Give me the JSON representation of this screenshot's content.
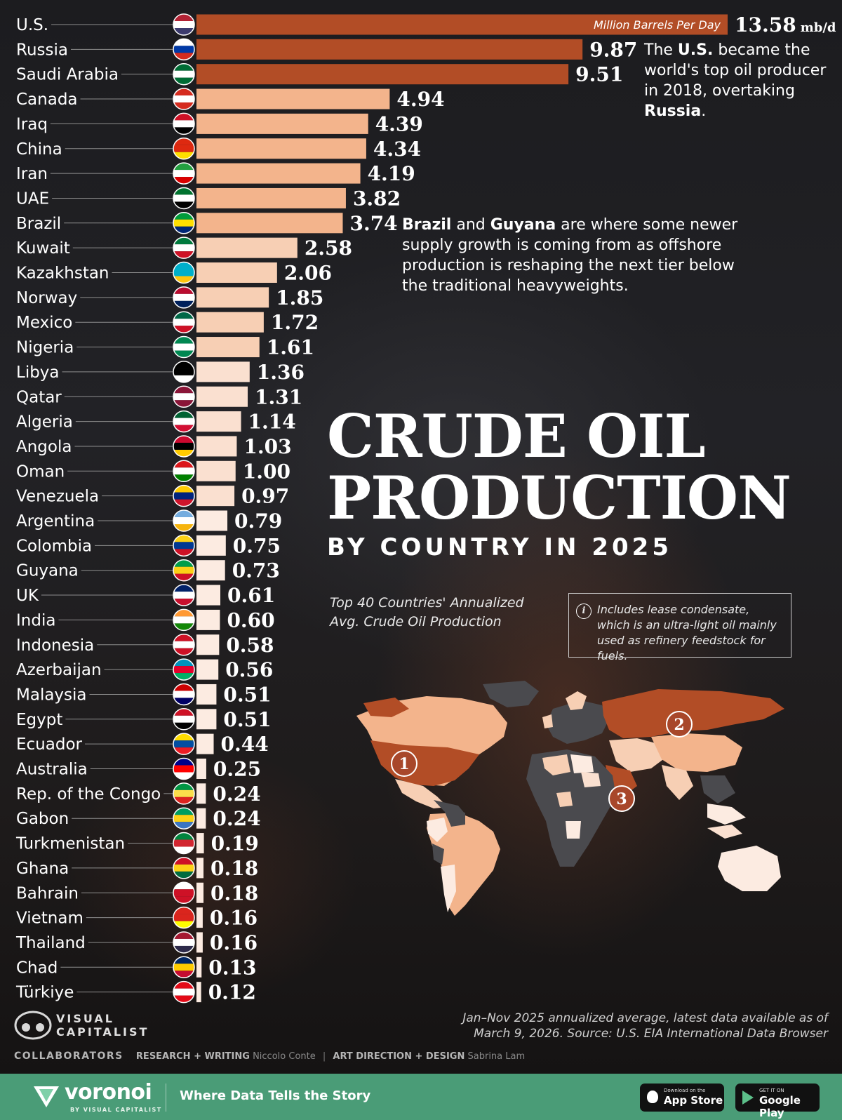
{
  "title_line1": "CRUDE OIL",
  "title_line2": "PRODUCTION",
  "subtitle": "BY COUNTRY IN 2025",
  "top40_line1": "Top 40 Countries' Annualized",
  "top40_line2": "Avg. Crude Oil Production",
  "info_icon": "i",
  "info_text": "Includes lease condensate, which is an ultra-light oil mainly used as refinery feedstock for fuels.",
  "note_us": {
    "part1": "The ",
    "bold1": "U.S.",
    "part2": " became the world's top oil producer in 2018, overtaking ",
    "bold2": "Russia",
    "part3": "."
  },
  "note_brazil": {
    "bold1": "Brazil",
    "part1": " and ",
    "bold2": "Guyana",
    "part2": " are where some newer supply growth is coming from as offshore production is reshaping the next tier below the traditional heavyweights."
  },
  "source_line1": "Jan–Nov 2025 annualized average, latest data available as of",
  "source_line2": "March 9, 2026. Source: U.S. EIA International Data Browser",
  "logo_line1": "VISUAL",
  "logo_line2": "CAPITALIST",
  "credits": {
    "header": "COLLABORATORS",
    "research_key": "RESEARCH + WRITING",
    "research_val": "Niccolo Conte",
    "art_key": "ART DIRECTION + DESIGN",
    "art_val": "Sabrina Lam"
  },
  "footer": {
    "brand": "voronoi",
    "brand_sub": "BY VISUAL CAPITALIST",
    "tagline": "Where Data Tells the Story",
    "store1_small": "Download on the",
    "store1_big": "App Store",
    "store2_small": "GET IT ON",
    "store2_big": "Google Play"
  },
  "map_markers": [
    "1",
    "2",
    "3"
  ],
  "colors": {
    "top3": "#b24d26",
    "tier2": "#f3b48c",
    "tier3": "#f7cfb4",
    "tier4": "#fae0d0",
    "tier5": "#fcebe1"
  },
  "chart_data": {
    "type": "bar",
    "orientation": "horizontal",
    "unit": "mb/d",
    "unit_caption": "Million Barrels Per Day",
    "categories": [
      "U.S.",
      "Russia",
      "Saudi Arabia",
      "Canada",
      "Iraq",
      "China",
      "Iran",
      "UAE",
      "Brazil",
      "Kuwait",
      "Kazakhstan",
      "Norway",
      "Mexico",
      "Nigeria",
      "Libya",
      "Qatar",
      "Algeria",
      "Angola",
      "Oman",
      "Venezuela",
      "Argentina",
      "Colombia",
      "Guyana",
      "UK",
      "India",
      "Indonesia",
      "Azerbaijan",
      "Malaysia",
      "Egypt",
      "Ecuador",
      "Australia",
      "Rep. of the Congo",
      "Gabon",
      "Turkmenistan",
      "Ghana",
      "Bahrain",
      "Vietnam",
      "Thailand",
      "Chad",
      "Türkiye"
    ],
    "values": [
      13.58,
      9.87,
      9.51,
      4.94,
      4.39,
      4.34,
      4.19,
      3.82,
      3.74,
      2.58,
      2.06,
      1.85,
      1.72,
      1.61,
      1.36,
      1.31,
      1.14,
      1.03,
      1.0,
      0.97,
      0.79,
      0.75,
      0.73,
      0.61,
      0.6,
      0.58,
      0.56,
      0.51,
      0.51,
      0.44,
      0.25,
      0.24,
      0.24,
      0.19,
      0.18,
      0.18,
      0.16,
      0.16,
      0.13,
      0.12
    ],
    "value_labels": [
      "13.58",
      "9.87",
      "9.51",
      "4.94",
      "4.39",
      "4.34",
      "4.19",
      "3.82",
      "3.74",
      "2.58",
      "2.06",
      "1.85",
      "1.72",
      "1.61",
      "1.36",
      "1.31",
      "1.14",
      "1.03",
      "1.00",
      "0.97",
      "0.79",
      "0.75",
      "0.73",
      "0.61",
      "0.60",
      "0.58",
      "0.56",
      "0.51",
      "0.51",
      "0.44",
      "0.25",
      "0.24",
      "0.24",
      "0.19",
      "0.18",
      "0.18",
      "0.16",
      "0.16",
      "0.13",
      "0.12"
    ],
    "flag_icons": [
      "us-flag-icon",
      "russia-flag-icon",
      "saudi-arabia-flag-icon",
      "canada-flag-icon",
      "iraq-flag-icon",
      "china-flag-icon",
      "iran-flag-icon",
      "uae-flag-icon",
      "brazil-flag-icon",
      "kuwait-flag-icon",
      "kazakhstan-flag-icon",
      "norway-flag-icon",
      "mexico-flag-icon",
      "nigeria-flag-icon",
      "libya-flag-icon",
      "qatar-flag-icon",
      "algeria-flag-icon",
      "angola-flag-icon",
      "oman-flag-icon",
      "venezuela-flag-icon",
      "argentina-flag-icon",
      "colombia-flag-icon",
      "guyana-flag-icon",
      "uk-flag-icon",
      "india-flag-icon",
      "indonesia-flag-icon",
      "azerbaijan-flag-icon",
      "malaysia-flag-icon",
      "egypt-flag-icon",
      "ecuador-flag-icon",
      "australia-flag-icon",
      "congo-flag-icon",
      "gabon-flag-icon",
      "turkmenistan-flag-icon",
      "ghana-flag-icon",
      "bahrain-flag-icon",
      "vietnam-flag-icon",
      "thailand-flag-icon",
      "chad-flag-icon",
      "turkiye-flag-icon"
    ],
    "flag_colors": [
      [
        "#b22234",
        "#ffffff",
        "#3c3b6e"
      ],
      [
        "#ffffff",
        "#0039a6",
        "#d52b1e"
      ],
      [
        "#006c35",
        "#ffffff",
        "#006c35"
      ],
      [
        "#d52b1e",
        "#ffffff",
        "#d52b1e"
      ],
      [
        "#ce1126",
        "#ffffff",
        "#000000"
      ],
      [
        "#de2910",
        "#de2910",
        "#ffde00"
      ],
      [
        "#239f40",
        "#ffffff",
        "#da0000"
      ],
      [
        "#00732f",
        "#ffffff",
        "#000000"
      ],
      [
        "#009c3b",
        "#ffdf00",
        "#002776"
      ],
      [
        "#007a3d",
        "#ffffff",
        "#ce1126"
      ],
      [
        "#00afca",
        "#00afca",
        "#fec50c"
      ],
      [
        "#ba0c2f",
        "#ffffff",
        "#00205b"
      ],
      [
        "#006847",
        "#ffffff",
        "#ce1126"
      ],
      [
        "#008751",
        "#ffffff",
        "#008751"
      ],
      [
        "#000000",
        "#000000",
        "#ffffff"
      ],
      [
        "#8a1538",
        "#ffffff",
        "#8a1538"
      ],
      [
        "#006233",
        "#ffffff",
        "#d21034"
      ],
      [
        "#cc092f",
        "#000000",
        "#ffcb00"
      ],
      [
        "#db161b",
        "#ffffff",
        "#008000"
      ],
      [
        "#ffcc00",
        "#00247d",
        "#cf142b"
      ],
      [
        "#74acdf",
        "#ffffff",
        "#f6b40e"
      ],
      [
        "#fcd116",
        "#003893",
        "#ce1126"
      ],
      [
        "#009e49",
        "#fcd116",
        "#ce1126"
      ],
      [
        "#012169",
        "#ffffff",
        "#c8102e"
      ],
      [
        "#ff9933",
        "#ffffff",
        "#138808"
      ],
      [
        "#ce1126",
        "#ffffff",
        "#ce1126"
      ],
      [
        "#0092bc",
        "#e4002b",
        "#00af66"
      ],
      [
        "#cc0001",
        "#ffffff",
        "#010066"
      ],
      [
        "#ce1126",
        "#ffffff",
        "#000000"
      ],
      [
        "#ffdd00",
        "#034ea2",
        "#ed1c24"
      ],
      [
        "#00008b",
        "#ff0000",
        "#ffffff"
      ],
      [
        "#009543",
        "#fbde4a",
        "#dc241f"
      ],
      [
        "#009e60",
        "#fcd116",
        "#3a75c4"
      ],
      [
        "#00843d",
        "#d22630",
        "#ffffff"
      ],
      [
        "#ce1126",
        "#fcd116",
        "#006b3f"
      ],
      [
        "#ffffff",
        "#ce1126",
        "#ce1126"
      ],
      [
        "#da251d",
        "#da251d",
        "#ffff00"
      ],
      [
        "#a51931",
        "#ffffff",
        "#2d2a4a"
      ],
      [
        "#002664",
        "#fecb00",
        "#c60c30"
      ],
      [
        "#e30a17",
        "#ffffff",
        "#e30a17"
      ]
    ],
    "xlim": [
      0,
      13.58
    ]
  }
}
